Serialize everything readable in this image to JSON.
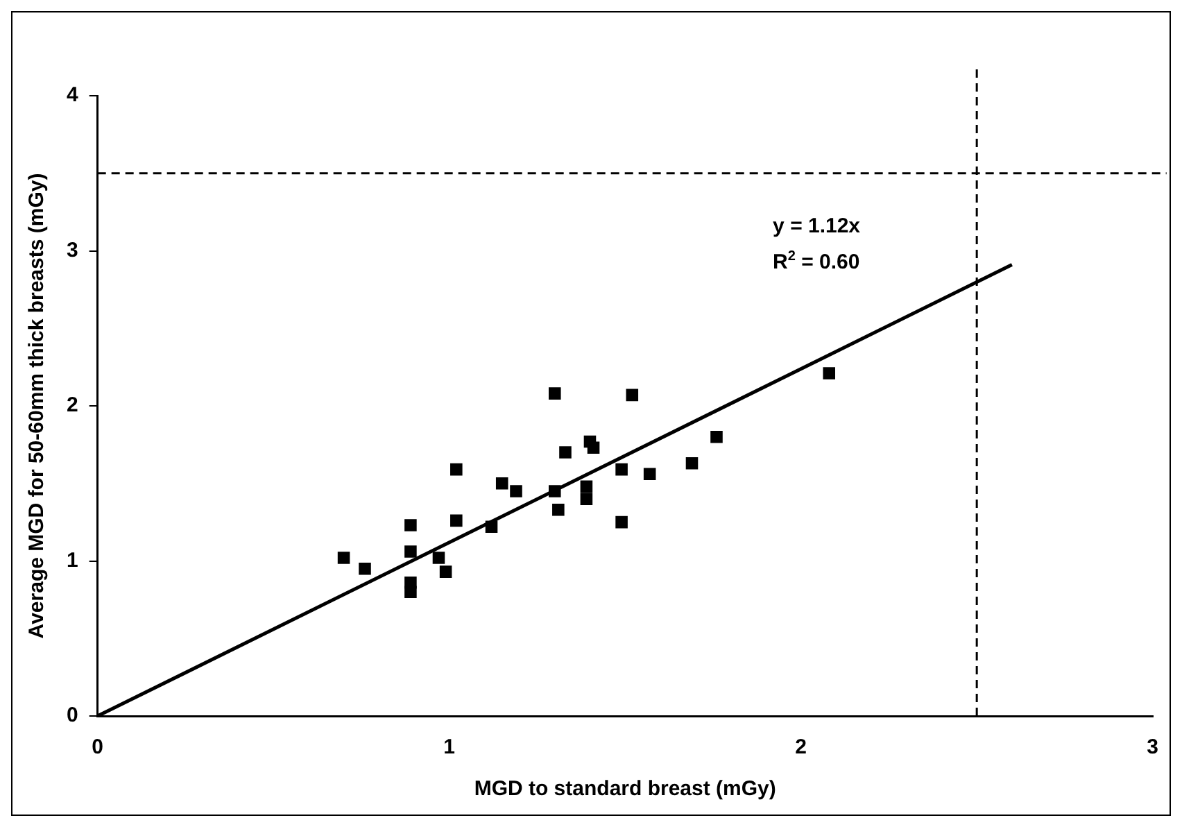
{
  "chart_data": {
    "type": "scatter",
    "xlabel": "MGD to standard breast (mGy)",
    "ylabel": "Average MGD for 50-60mm thick breasts (mGy)",
    "xlim": [
      0,
      3
    ],
    "xticks": [
      0,
      1,
      2,
      3
    ],
    "ylim": [
      0,
      4
    ],
    "yticks": [
      0,
      1,
      2,
      3,
      4
    ],
    "grid": false,
    "legend": false,
    "series": [
      {
        "marker": "square",
        "color": "#000000",
        "x": [
          0.7,
          0.76,
          0.89,
          0.89,
          0.89,
          0.89,
          0.97,
          0.99,
          1.02,
          1.02,
          1.12,
          1.15,
          1.19,
          1.3,
          1.3,
          1.31,
          1.33,
          1.39,
          1.39,
          1.4,
          1.41,
          1.49,
          1.49,
          1.52,
          1.57,
          1.69,
          1.76,
          2.08
        ],
        "values": [
          1.02,
          0.95,
          1.23,
          1.06,
          0.86,
          0.8,
          1.02,
          0.93,
          1.59,
          1.26,
          1.22,
          1.5,
          1.45,
          2.08,
          1.45,
          1.33,
          1.7,
          1.4,
          1.48,
          1.77,
          1.73,
          1.59,
          1.25,
          2.07,
          1.56,
          1.63,
          1.8,
          2.21
        ]
      },
      {
        "type": "line",
        "marker": "none",
        "color": "#000000",
        "x": [
          0,
          2.6
        ],
        "values": [
          0,
          2.91
        ]
      }
    ],
    "ref_lines": [
      {
        "axis": "x",
        "value": 2.5,
        "color": "#000000",
        "line_style": "dashed"
      },
      {
        "axis": "y",
        "value": 3.5,
        "color": "#000000",
        "line_style": "dashed"
      }
    ],
    "annotations": [
      "y = 1.12x",
      "R$^{2}$ = 0.60"
    ]
  }
}
